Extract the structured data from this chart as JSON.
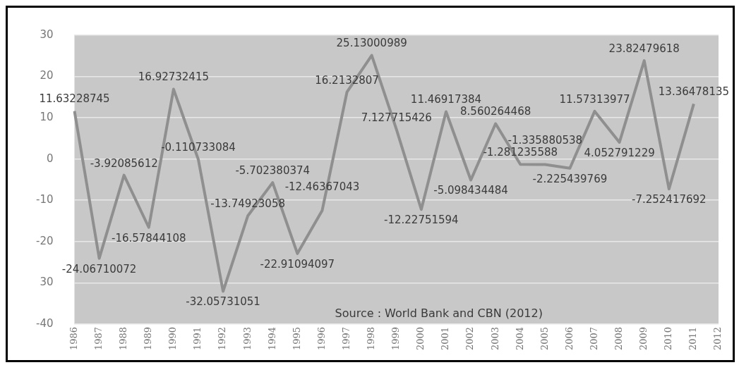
{
  "chart_data": {
    "type": "line",
    "categories": [
      "1986",
      "1987",
      "1988",
      "1989",
      "1990",
      "1991",
      "1992",
      "1993",
      "1994",
      "1995",
      "1996",
      "1997",
      "1998",
      "1999",
      "2000",
      "2001",
      "2002",
      "2003",
      "2004",
      "2005",
      "2006",
      "2007",
      "2008",
      "2009",
      "2010",
      "2011",
      "2012"
    ],
    "series": [
      {
        "color": "#8f8f8f",
        "values": [
          11.63228745,
          -24.06710072,
          -3.92085612,
          -16.57844108,
          16.92732415,
          -0.110733084,
          -32.05731051,
          -13.74923058,
          -5.702380374,
          -22.91094097,
          -12.46367043,
          16.2132807,
          25.13000989,
          7.127715426,
          -12.22751594,
          11.46917384,
          -5.098434484,
          8.560264468,
          -1.281235588,
          -1.335880538,
          -2.225439769,
          11.57313977,
          4.052791229,
          23.82479618,
          -7.252417692,
          13.36478135,
          null
        ]
      }
    ],
    "ylim": [
      -40,
      30
    ],
    "yticks": [
      30,
      20,
      10,
      0,
      -10,
      -20,
      {
        "value": -30,
        "label": "30"
      },
      -40
    ],
    "grid": "y",
    "legend": false,
    "marker": "none",
    "line_style": "solid",
    "data_labels": true,
    "annotations": [
      "Source : World Bank and CBN (2012)"
    ]
  }
}
